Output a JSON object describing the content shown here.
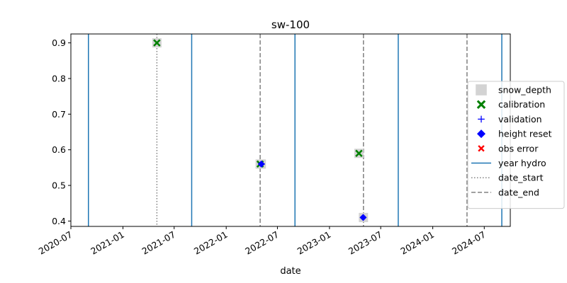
{
  "chart_data": {
    "type": "scatter",
    "title": "sw-100",
    "xlabel": "date",
    "ylabel": "",
    "xlim": [
      "2020-07-01",
      "2024-10-01"
    ],
    "ylim": [
      0.385,
      0.925
    ],
    "x_ticks": [
      "2020-07",
      "2021-01",
      "2021-07",
      "2022-01",
      "2022-07",
      "2023-01",
      "2023-07",
      "2024-01",
      "2024-07"
    ],
    "y_ticks": [
      0.4,
      0.5,
      0.6,
      0.7,
      0.8,
      0.9
    ],
    "grid": false,
    "legend_position": "right",
    "series": [
      {
        "name": "snow_depth",
        "marker": "square",
        "color": "#d3d3d3",
        "points": [
          {
            "x": "2021-05-01",
            "y": 0.9
          },
          {
            "x": "2022-05-01",
            "y": 0.56
          },
          {
            "x": "2022-05-05",
            "y": 0.56
          },
          {
            "x": "2023-04-15",
            "y": 0.59
          },
          {
            "x": "2023-05-01",
            "y": 0.41
          }
        ]
      },
      {
        "name": "calibration",
        "marker": "X",
        "color": "#008000",
        "points": [
          {
            "x": "2021-05-01",
            "y": 0.9
          },
          {
            "x": "2022-05-01",
            "y": 0.56
          },
          {
            "x": "2023-04-15",
            "y": 0.59
          }
        ]
      },
      {
        "name": "validation",
        "marker": "plus",
        "color": "#0000ff",
        "points": [
          {
            "x": "2022-05-08",
            "y": 0.56
          },
          {
            "x": "2023-04-30",
            "y": 0.41
          }
        ]
      },
      {
        "name": "height reset",
        "marker": "diamond",
        "color": "#0000ff",
        "points": [
          {
            "x": "2022-05-05",
            "y": 0.56
          },
          {
            "x": "2023-04-30",
            "y": 0.41
          }
        ]
      },
      {
        "name": "obs error",
        "marker": "x",
        "color": "#ff0000",
        "points": []
      }
    ],
    "vertical_lines": [
      {
        "name": "year hydro",
        "style": "solid",
        "color": "#1f77b4",
        "dates": [
          "2020-09-01",
          "2021-09-01",
          "2022-09-01",
          "2023-09-01",
          "2024-09-01"
        ]
      },
      {
        "name": "date_start",
        "style": "dotted",
        "color": "#808080",
        "dates": [
          "2021-05-01"
        ]
      },
      {
        "name": "date_end",
        "style": "dashed",
        "color": "#808080",
        "dates": [
          "2022-05-01",
          "2023-05-01",
          "2024-05-01"
        ]
      }
    ]
  }
}
